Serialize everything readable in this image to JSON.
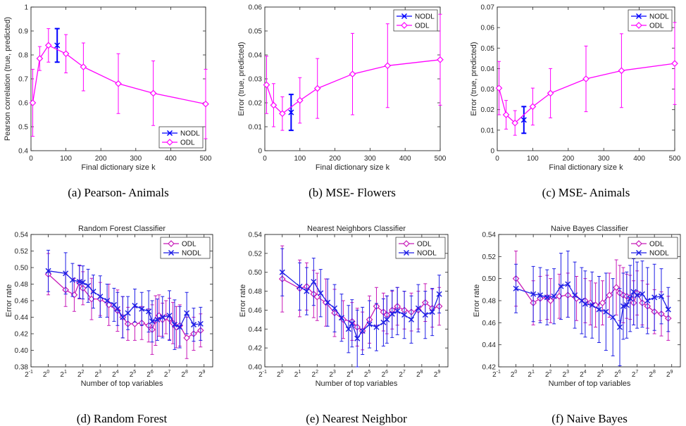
{
  "chart_data": [
    {
      "type": "line",
      "panel": "a",
      "caption": "(a) Pearson- Animals",
      "xlabel": "Final dictionary size k",
      "ylabel": "Pearson correlation (true, predicted)",
      "xlim": [
        0,
        500
      ],
      "ylim": [
        0.4,
        1.0
      ],
      "xticks": [
        0,
        100,
        200,
        300,
        400,
        500
      ],
      "xtick_labels": [
        "0",
        "100",
        "200",
        "300",
        "400",
        "500"
      ],
      "yticks": [
        0.4,
        0.5,
        0.6,
        0.7,
        0.8,
        0.9,
        1.0
      ],
      "ytick_labels": [
        "0.4",
        "0.5",
        "0.6",
        "0.7",
        "0.8",
        "0.9",
        "1"
      ],
      "legend_position": "bottom-right",
      "series": [
        {
          "name": "NODL",
          "color": "#0000ff",
          "marker": "x",
          "x": [
            75
          ],
          "y": [
            0.84
          ],
          "err": [
            0.07
          ]
        },
        {
          "name": "ODL",
          "color": "#ff00ff",
          "marker": "diamond",
          "x": [
            5,
            25,
            50,
            100,
            150,
            250,
            350,
            500
          ],
          "y": [
            0.6,
            0.785,
            0.84,
            0.805,
            0.75,
            0.68,
            0.64,
            0.595
          ],
          "err": [
            0.14,
            0.05,
            0.07,
            0.08,
            0.1,
            0.125,
            0.135,
            0.145
          ]
        }
      ]
    },
    {
      "type": "line",
      "panel": "b",
      "caption": "(b) MSE- Flowers",
      "xlabel": "Final dictionary size k",
      "ylabel": "Error (true, predicted)",
      "xlim": [
        0,
        500
      ],
      "ylim": [
        0,
        0.06
      ],
      "xticks": [
        0,
        100,
        200,
        300,
        400,
        500
      ],
      "xtick_labels": [
        "0",
        "100",
        "200",
        "300",
        "400",
        "500"
      ],
      "yticks": [
        0,
        0.01,
        0.02,
        0.03,
        0.04,
        0.05,
        0.06
      ],
      "ytick_labels": [
        "0",
        "0.01",
        "0.02",
        "0.03",
        "0.04",
        "0.05",
        "0.06"
      ],
      "legend_position": "top-right",
      "series": [
        {
          "name": "NODL",
          "color": "#0000ff",
          "marker": "x",
          "x": [
            75
          ],
          "y": [
            0.016
          ],
          "err": [
            0.0075
          ]
        },
        {
          "name": "ODL",
          "color": "#ff00ff",
          "marker": "diamond",
          "x": [
            5,
            25,
            50,
            100,
            150,
            250,
            350,
            500
          ],
          "y": [
            0.0275,
            0.019,
            0.0155,
            0.021,
            0.026,
            0.032,
            0.0355,
            0.038
          ],
          "err": [
            0.012,
            0.009,
            0.007,
            0.0095,
            0.0125,
            0.017,
            0.0175,
            0.019
          ]
        }
      ]
    },
    {
      "type": "line",
      "panel": "c",
      "caption": "(c) MSE- Animals",
      "xlabel": "Final dictionary size k",
      "ylabel": "Error (true, predicted)",
      "xlim": [
        0,
        500
      ],
      "ylim": [
        0,
        0.07
      ],
      "xticks": [
        0,
        100,
        200,
        300,
        400,
        500
      ],
      "xtick_labels": [
        "0",
        "100",
        "200",
        "300",
        "400",
        "500"
      ],
      "yticks": [
        0,
        0.01,
        0.02,
        0.03,
        0.04,
        0.05,
        0.06,
        0.07
      ],
      "ytick_labels": [
        "0",
        "0.01",
        "0.02",
        "0.03",
        "0.04",
        "0.05",
        "0.06",
        "0.07"
      ],
      "legend_position": "top-right",
      "series": [
        {
          "name": "NODL",
          "color": "#0000ff",
          "marker": "x",
          "x": [
            75
          ],
          "y": [
            0.015
          ],
          "err": [
            0.0065
          ]
        },
        {
          "name": "ODL",
          "color": "#ff00ff",
          "marker": "diamond",
          "x": [
            5,
            25,
            50,
            100,
            150,
            250,
            350,
            500
          ],
          "y": [
            0.0305,
            0.0175,
            0.0135,
            0.0215,
            0.028,
            0.035,
            0.039,
            0.0425
          ],
          "err": [
            0.013,
            0.007,
            0.006,
            0.009,
            0.012,
            0.016,
            0.018,
            0.02
          ]
        }
      ]
    },
    {
      "type": "line",
      "panel": "d",
      "caption": "(d) Random Forest",
      "title": "Random Forest Classifier",
      "xlabel": "Number of top variables",
      "ylabel": "Error rate",
      "xscale": "log2",
      "xlim": [
        -1,
        9.5
      ],
      "ylim": [
        0.38,
        0.54
      ],
      "xticks": [
        -1,
        0,
        1,
        2,
        3,
        4,
        5,
        6,
        7,
        8,
        9
      ],
      "yticks": [
        0.38,
        0.4,
        0.42,
        0.44,
        0.46,
        0.48,
        0.5,
        0.52,
        0.54
      ],
      "ytick_labels": [
        "0.38",
        "0.40",
        "0.42",
        "0.44",
        "0.46",
        "0.48",
        "0.50",
        "0.52",
        "0.54"
      ],
      "legend_position": "top-right",
      "series": [
        {
          "name": "ODL",
          "color": "#c71ab8",
          "marker": "diamond",
          "x": [
            0,
            1,
            1.5,
            1.8,
            2,
            2.5,
            3,
            3.5,
            4,
            4.3,
            4.6,
            5,
            5.4,
            5.8,
            6,
            6.2,
            6.4,
            6.6,
            6.8,
            7,
            7.2,
            7.4,
            7.6,
            8,
            8.4,
            8.8
          ],
          "y": [
            0.492,
            0.473,
            0.467,
            0.482,
            0.475,
            0.462,
            0.462,
            0.455,
            0.448,
            0.44,
            0.432,
            0.432,
            0.433,
            0.43,
            0.425,
            0.436,
            0.442,
            0.437,
            0.44,
            0.438,
            0.433,
            0.428,
            0.43,
            0.415,
            0.42,
            0.424
          ],
          "err": [
            0.025,
            0.02,
            0.02,
            0.02,
            0.02,
            0.025,
            0.02,
            0.025,
            0.025,
            0.025,
            0.02,
            0.02,
            0.02,
            0.02,
            0.03,
            0.03,
            0.025,
            0.02,
            0.02,
            0.025,
            0.025,
            0.025,
            0.025,
            0.025,
            0.02,
            0.02
          ]
        },
        {
          "name": "NODL",
          "color": "#1f1fe6",
          "marker": "x",
          "x": [
            0,
            1,
            1.4,
            1.8,
            2,
            2.3,
            2.6,
            3,
            3.4,
            3.8,
            4,
            4.3,
            4.6,
            5,
            5.4,
            5.8,
            6,
            6.3,
            6.6,
            7,
            7.3,
            7.6,
            8,
            8.4,
            8.8
          ],
          "y": [
            0.496,
            0.493,
            0.485,
            0.483,
            0.482,
            0.478,
            0.471,
            0.465,
            0.46,
            0.455,
            0.45,
            0.44,
            0.445,
            0.454,
            0.45,
            0.447,
            0.435,
            0.437,
            0.44,
            0.442,
            0.431,
            0.428,
            0.445,
            0.431,
            0.432
          ],
          "err": [
            0.025,
            0.025,
            0.02,
            0.02,
            0.02,
            0.02,
            0.02,
            0.025,
            0.02,
            0.02,
            0.02,
            0.025,
            0.02,
            0.02,
            0.02,
            0.025,
            0.025,
            0.025,
            0.025,
            0.03,
            0.03,
            0.025,
            0.025,
            0.02,
            0.02
          ]
        }
      ]
    },
    {
      "type": "line",
      "panel": "e",
      "caption": "(e) Nearest Neighbor",
      "title": "Nearest Neighbors Classifier",
      "xlabel": "Number of top variables",
      "ylabel": "Error rate",
      "xscale": "log2",
      "xlim": [
        -1,
        9.5
      ],
      "ylim": [
        0.4,
        0.54
      ],
      "xticks": [
        -1,
        0,
        1,
        2,
        3,
        4,
        5,
        6,
        7,
        8,
        9
      ],
      "yticks": [
        0.4,
        0.42,
        0.44,
        0.46,
        0.48,
        0.5,
        0.52,
        0.54
      ],
      "ytick_labels": [
        "0.40",
        "0.42",
        "0.44",
        "0.46",
        "0.48",
        "0.50",
        "0.52",
        "0.54"
      ],
      "legend_position": "top-right",
      "series": [
        {
          "name": "ODL",
          "color": "#c71ab8",
          "marker": "diamond",
          "x": [
            0,
            1,
            1.4,
            1.8,
            2,
            2.5,
            3,
            3.5,
            4,
            4.3,
            4.6,
            5,
            5.4,
            5.8,
            6,
            6.3,
            6.6,
            7,
            7.4,
            7.8,
            8.2,
            8.6,
            9
          ],
          "y": [
            0.493,
            0.483,
            0.485,
            0.477,
            0.474,
            0.468,
            0.457,
            0.45,
            0.448,
            0.442,
            0.438,
            0.45,
            0.464,
            0.458,
            0.455,
            0.46,
            0.464,
            0.46,
            0.458,
            0.46,
            0.468,
            0.462,
            0.464
          ],
          "err": [
            0.035,
            0.03,
            0.025,
            0.025,
            0.025,
            0.025,
            0.025,
            0.02,
            0.02,
            0.02,
            0.02,
            0.025,
            0.02,
            0.02,
            0.02,
            0.02,
            0.02,
            0.02,
            0.02,
            0.02,
            0.02,
            0.02,
            0.02
          ]
        },
        {
          "name": "NODL",
          "color": "#1f1fe6",
          "marker": "x",
          "x": [
            0,
            1,
            1.4,
            1.8,
            2.2,
            2.6,
            3,
            3.4,
            3.8,
            4,
            4.3,
            4.6,
            5,
            5.4,
            5.8,
            6,
            6.3,
            6.6,
            7,
            7.4,
            7.8,
            8.2,
            8.6,
            9
          ],
          "y": [
            0.5,
            0.485,
            0.48,
            0.49,
            0.478,
            0.468,
            0.462,
            0.452,
            0.44,
            0.446,
            0.43,
            0.438,
            0.445,
            0.442,
            0.447,
            0.45,
            0.456,
            0.459,
            0.455,
            0.45,
            0.462,
            0.455,
            0.458,
            0.477
          ],
          "err": [
            0.025,
            0.025,
            0.025,
            0.025,
            0.025,
            0.025,
            0.025,
            0.025,
            0.025,
            0.025,
            0.03,
            0.025,
            0.025,
            0.025,
            0.025,
            0.025,
            0.025,
            0.025,
            0.025,
            0.025,
            0.025,
            0.025,
            0.025,
            0.02
          ]
        }
      ]
    },
    {
      "type": "line",
      "panel": "f",
      "caption": "(f) Naive Bayes",
      "title": "Naive Bayes Classifier",
      "xlabel": "Number of top variables",
      "ylabel": "Error rate",
      "xscale": "log2",
      "xlim": [
        -1,
        9.5
      ],
      "ylim": [
        0.42,
        0.54
      ],
      "xticks": [
        -1,
        0,
        1,
        2,
        3,
        4,
        5,
        6,
        7,
        8,
        9
      ],
      "yticks": [
        0.42,
        0.44,
        0.46,
        0.48,
        0.5,
        0.52,
        0.54
      ],
      "ytick_labels": [
        "0.42",
        "0.44",
        "0.46",
        "0.48",
        "0.50",
        "0.52",
        "0.54"
      ],
      "legend_position": "top-right",
      "series": [
        {
          "name": "ODL",
          "color": "#c71ab8",
          "marker": "diamond",
          "x": [
            0,
            1,
            1.4,
            1.8,
            2,
            2.5,
            3,
            3.5,
            4,
            4.3,
            4.6,
            5,
            5.4,
            5.8,
            6,
            6.2,
            6.4,
            6.6,
            6.8,
            7,
            7.3,
            7.6,
            8,
            8.4,
            8.8
          ],
          "y": [
            0.5,
            0.478,
            0.482,
            0.483,
            0.48,
            0.484,
            0.485,
            0.482,
            0.48,
            0.478,
            0.476,
            0.478,
            0.485,
            0.492,
            0.487,
            0.485,
            0.484,
            0.483,
            0.478,
            0.487,
            0.478,
            0.475,
            0.47,
            0.468,
            0.464
          ],
          "err": [
            0.025,
            0.02,
            0.02,
            0.02,
            0.02,
            0.02,
            0.02,
            0.02,
            0.02,
            0.02,
            0.02,
            0.02,
            0.02,
            0.025,
            0.025,
            0.025,
            0.02,
            0.02,
            0.02,
            0.02,
            0.02,
            0.02,
            0.02,
            0.02,
            0.02
          ]
        },
        {
          "name": "NODL",
          "color": "#1f1fe6",
          "marker": "x",
          "x": [
            0,
            1,
            1.4,
            1.8,
            2.2,
            2.6,
            3,
            3.4,
            3.8,
            4,
            4.4,
            4.8,
            5.2,
            5.6,
            6,
            6.2,
            6.4,
            6.6,
            6.8,
            7,
            7.3,
            7.6,
            8,
            8.4,
            8.8
          ],
          "y": [
            0.491,
            0.486,
            0.485,
            0.483,
            0.484,
            0.493,
            0.495,
            0.485,
            0.48,
            0.477,
            0.476,
            0.472,
            0.47,
            0.465,
            0.456,
            0.475,
            0.476,
            0.482,
            0.488,
            0.485,
            0.486,
            0.48,
            0.483,
            0.484,
            0.472
          ],
          "err": [
            0.022,
            0.025,
            0.025,
            0.025,
            0.025,
            0.03,
            0.03,
            0.03,
            0.03,
            0.03,
            0.03,
            0.03,
            0.035,
            0.035,
            0.035,
            0.03,
            0.03,
            0.03,
            0.03,
            0.03,
            0.03,
            0.03,
            0.03,
            0.025,
            0.02
          ]
        }
      ]
    }
  ]
}
